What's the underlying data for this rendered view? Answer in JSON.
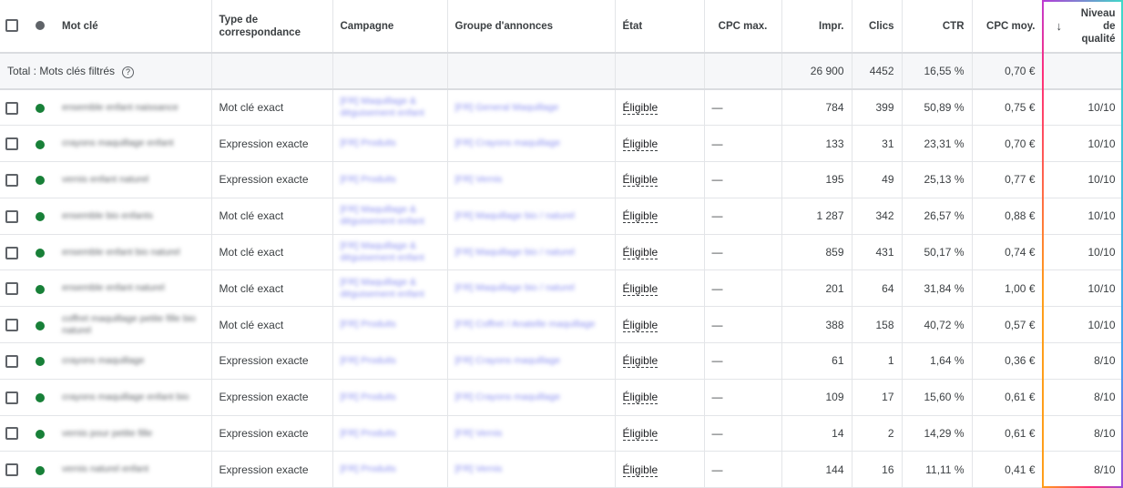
{
  "header": {
    "mot_cle": "Mot clé",
    "type": "Type de correspondance",
    "campagne": "Campagne",
    "groupe": "Groupe d'annonces",
    "etat": "État",
    "cpc_max": "CPC max.",
    "impr": "Impr.",
    "clics": "Clics",
    "ctr": "CTR",
    "cpc_moy": "CPC moy.",
    "niveau": "Niveau de qualité",
    "sort_icon": "arrow-down-icon"
  },
  "total": {
    "label": "Total : Mots clés filtrés",
    "help_icon": "?",
    "impr": "26 900",
    "clics": "4452",
    "ctr": "16,55 %",
    "cpc_moy": "0,70 €"
  },
  "colors": {
    "status_enabled": "#188038",
    "status_header": "#5f6368",
    "link": "#8a8ff0"
  },
  "rows": [
    {
      "keyword": "ensemble enfant naissance",
      "type": "Mot clé exact",
      "campaign": "[FR] Maquillage & déguisement enfant",
      "adgroup": "[FR] General Maquillage",
      "state": "Éligible",
      "cpc_max": "—",
      "impr": "784",
      "clics": "399",
      "ctr": "50,89 %",
      "cpc": "0,75 €",
      "qs": "10/10"
    },
    {
      "keyword": "crayons maquillage enfant",
      "type": "Expression exacte",
      "campaign": "[FR] Produits",
      "adgroup": "[FR] Crayons maquillage",
      "state": "Éligible",
      "cpc_max": "—",
      "impr": "133",
      "clics": "31",
      "ctr": "23,31 %",
      "cpc": "0,70 €",
      "qs": "10/10"
    },
    {
      "keyword": "vernis enfant naturel",
      "type": "Expression exacte",
      "campaign": "[FR] Produits",
      "adgroup": "[FR] Vernis",
      "state": "Éligible",
      "cpc_max": "—",
      "impr": "195",
      "clics": "49",
      "ctr": "25,13 %",
      "cpc": "0,77 €",
      "qs": "10/10"
    },
    {
      "keyword": "ensemble bio enfants",
      "type": "Mot clé exact",
      "campaign": "[FR] Maquillage & déguisement enfant",
      "adgroup": "[FR] Maquillage bio / naturel",
      "state": "Éligible",
      "cpc_max": "—",
      "impr": "1 287",
      "clics": "342",
      "ctr": "26,57 %",
      "cpc": "0,88 €",
      "qs": "10/10"
    },
    {
      "keyword": "ensemble enfant bio naturel",
      "type": "Mot clé exact",
      "campaign": "[FR] Maquillage & déguisement enfant",
      "adgroup": "[FR] Maquillage bio / naturel",
      "state": "Éligible",
      "cpc_max": "—",
      "impr": "859",
      "clics": "431",
      "ctr": "50,17 %",
      "cpc": "0,74 €",
      "qs": "10/10"
    },
    {
      "keyword": "ensemble enfant naturel",
      "type": "Mot clé exact",
      "campaign": "[FR] Maquillage & déguisement enfant",
      "adgroup": "[FR] Maquillage bio / naturel",
      "state": "Éligible",
      "cpc_max": "—",
      "impr": "201",
      "clics": "64",
      "ctr": "31,84 %",
      "cpc": "1,00 €",
      "qs": "10/10"
    },
    {
      "keyword": "coffret maquillage petite fille bio naturel",
      "type": "Mot clé exact",
      "campaign": "[FR] Produits",
      "adgroup": "[FR] Coffret / Anatelle maquillage",
      "state": "Éligible",
      "cpc_max": "—",
      "impr": "388",
      "clics": "158",
      "ctr": "40,72 %",
      "cpc": "0,57 €",
      "qs": "10/10"
    },
    {
      "keyword": "crayons maquillage",
      "type": "Expression exacte",
      "campaign": "[FR] Produits",
      "adgroup": "[FR] Crayons maquillage",
      "state": "Éligible",
      "cpc_max": "—",
      "impr": "61",
      "clics": "1",
      "ctr": "1,64 %",
      "cpc": "0,36 €",
      "qs": "8/10"
    },
    {
      "keyword": "crayons maquillage enfant bio",
      "type": "Expression exacte",
      "campaign": "[FR] Produits",
      "adgroup": "[FR] Crayons maquillage",
      "state": "Éligible",
      "cpc_max": "—",
      "impr": "109",
      "clics": "17",
      "ctr": "15,60 %",
      "cpc": "0,61 €",
      "qs": "8/10"
    },
    {
      "keyword": "vernis pour petite fille",
      "type": "Expression exacte",
      "campaign": "[FR] Produits",
      "adgroup": "[FR] Vernis",
      "state": "Éligible",
      "cpc_max": "—",
      "impr": "14",
      "clics": "2",
      "ctr": "14,29 %",
      "cpc": "0,61 €",
      "qs": "8/10"
    },
    {
      "keyword": "vernis naturel enfant",
      "type": "Expression exacte",
      "campaign": "[FR] Produits",
      "adgroup": "[FR] Vernis",
      "state": "Éligible",
      "cpc_max": "—",
      "impr": "144",
      "clics": "16",
      "ctr": "11,11 %",
      "cpc": "0,41 €",
      "qs": "8/10"
    }
  ]
}
